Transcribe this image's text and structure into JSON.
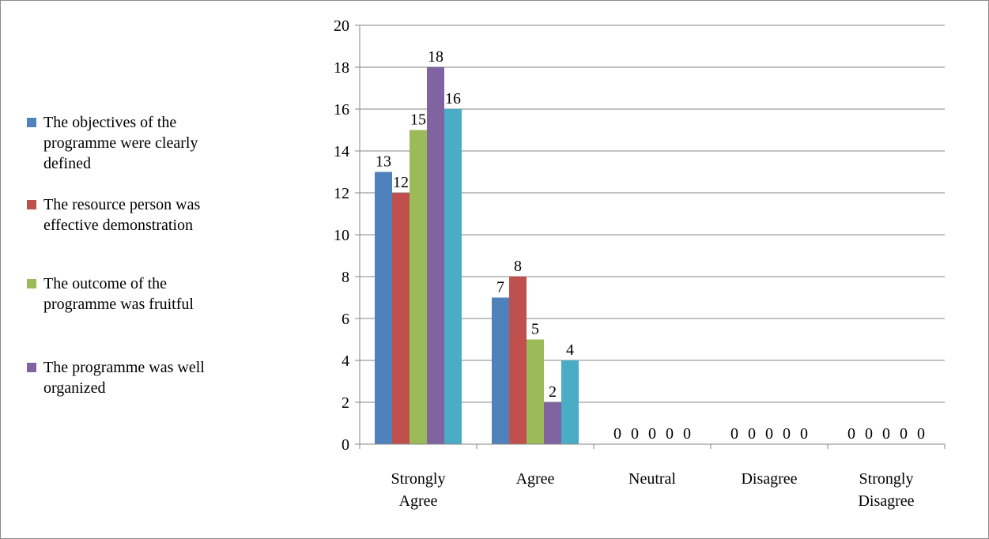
{
  "chart_data": {
    "type": "bar",
    "title": "",
    "xlabel": "",
    "ylabel": "",
    "ylim": [
      0,
      20
    ],
    "ytick_step": 2,
    "grid": true,
    "legend_position": "left",
    "categories": [
      "Strongly Agree",
      "Agree",
      "Neutral",
      "Disagree",
      "Strongly Disagree"
    ],
    "category_labels": [
      [
        "Strongly",
        "Agree"
      ],
      [
        "Agree"
      ],
      [
        "Neutral"
      ],
      [
        "Disagree"
      ],
      [
        "Strongly",
        "Disagree"
      ]
    ],
    "series": [
      {
        "name": "The objectives of the programme were clearly defined",
        "color": "#4f81bd",
        "values": [
          13,
          7,
          0,
          0,
          0
        ]
      },
      {
        "name": "The resource person was effective demonstration",
        "color": "#c0504d",
        "values": [
          12,
          8,
          0,
          0,
          0
        ]
      },
      {
        "name": "The outcome of the programme was fruitful",
        "color": "#9bbb59",
        "values": [
          15,
          5,
          0,
          0,
          0
        ]
      },
      {
        "name": "The programme was well organized",
        "color": "#8064a2",
        "values": [
          18,
          2,
          0,
          0,
          0
        ]
      },
      {
        "name": "",
        "color": "#4bacc6",
        "values": [
          16,
          4,
          0,
          0,
          0
        ]
      }
    ]
  },
  "legend": {
    "items": [
      {
        "lines": [
          "The objectives of the",
          "programme were clearly",
          "defined"
        ],
        "color": "#4f81bd"
      },
      {
        "lines": [
          "The resource person was",
          "effective demonstration"
        ],
        "color": "#c0504d"
      },
      {
        "lines": [
          "The outcome of the",
          "programme was fruitful"
        ],
        "color": "#9bbb59"
      },
      {
        "lines": [
          "The programme was well",
          "organized"
        ],
        "color": "#8064a2"
      }
    ]
  }
}
